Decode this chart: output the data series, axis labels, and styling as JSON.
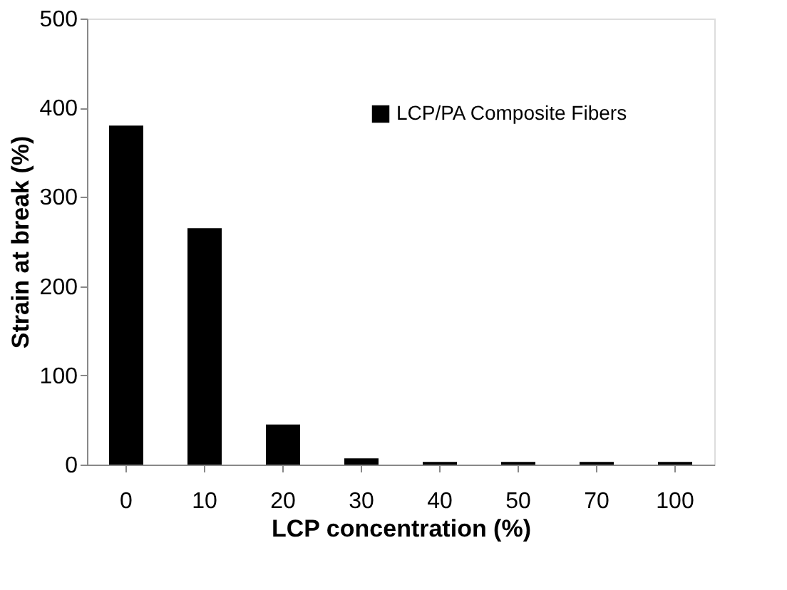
{
  "chart_data": {
    "type": "bar",
    "xlabel": "LCP concentration (%)",
    "ylabel": "Strain at break (%)",
    "categories": [
      "0",
      "10",
      "20",
      "30",
      "40",
      "50",
      "70",
      "100"
    ],
    "series": [
      {
        "name": "LCP/PA Composite Fibers",
        "color": "#000000",
        "values": [
          380,
          265,
          45,
          7,
          3,
          3,
          3,
          3
        ]
      }
    ],
    "ylim": [
      0,
      500
    ],
    "yticks": [
      0,
      100,
      200,
      300,
      400,
      500
    ],
    "grid": false,
    "legend": "top right"
  }
}
